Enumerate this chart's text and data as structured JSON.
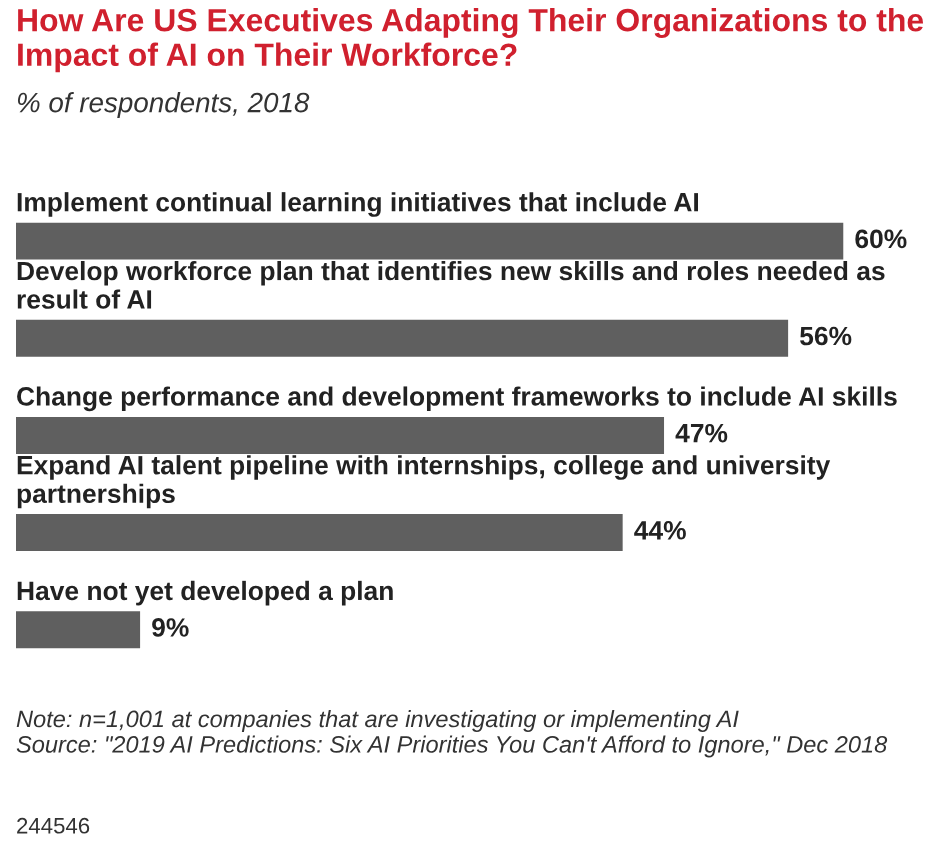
{
  "chart_data": {
    "type": "bar",
    "orientation": "horizontal",
    "title": "How Are US Executives Adapting Their Organizations to the Impact of AI on Their Workforce?",
    "subtitle": "% of respondents, 2018",
    "categories": [
      "Implement continual learning initiatives that include AI",
      "Develop workforce plan that identifies new skills and roles needed as result of AI",
      "Change performance and development frameworks to include AI skills",
      "Expand AI talent pipeline with internships, college and university partnerships",
      "Have not yet developed a plan"
    ],
    "values": [
      60,
      56,
      47,
      44,
      9
    ],
    "value_labels": [
      "60%",
      "56%",
      "47%",
      "44%",
      "9%"
    ],
    "color": "#5f5f5f",
    "annotations": [
      "Note: n=1,001 at companies that are investigating or implementing AI\nSource: \"2019 AI Predictions: Six AI Priorities You Can't Afford to Ignore,\" Dec 2018",
      "244546"
    ]
  }
}
